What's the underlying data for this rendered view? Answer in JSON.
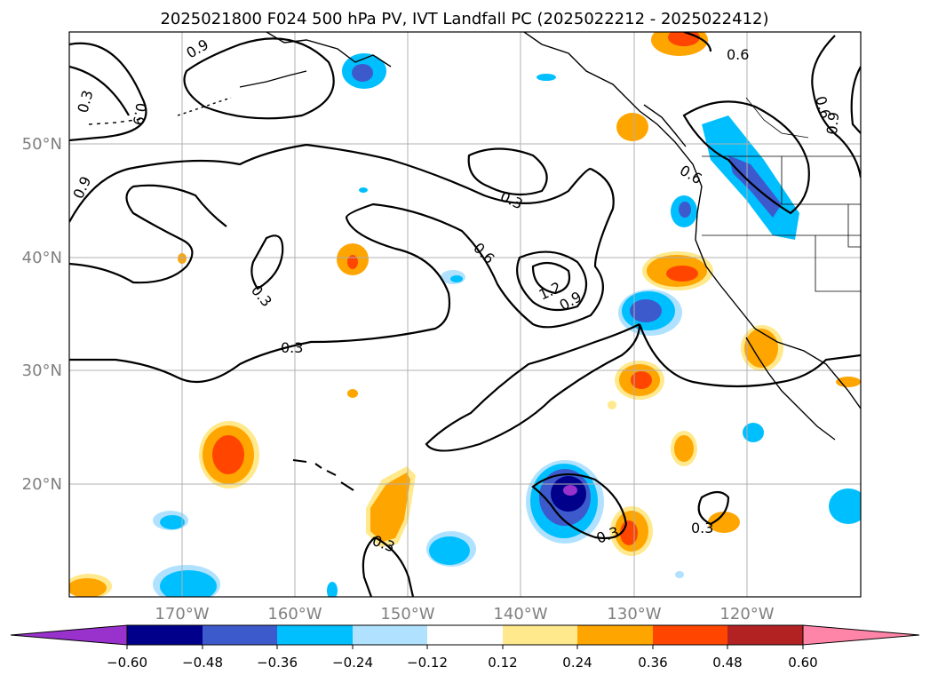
{
  "title": "2025021800 F024 500 hPa PV, IVT Landfall PC (2025022212 - 2025022412)",
  "lat_labels": [
    "50°N",
    "40°N",
    "30°N",
    "20°N"
  ],
  "lon_labels": [
    "170°W",
    "160°W",
    "150°W",
    "140°W",
    "130°W",
    "120°W"
  ],
  "contour_labels": [
    "0.9",
    "0.3",
    "0.9",
    "0.6",
    "0.9",
    "0.6",
    "0.9",
    "0.3",
    "0.6",
    "0.3",
    "1.2",
    "0.9",
    "0.6",
    "0.3",
    "0.3",
    "0.3",
    "0.3"
  ],
  "colorbar": {
    "ticks": [
      "−0.60",
      "−0.48",
      "−0.36",
      "−0.24",
      "−0.12",
      "0.12",
      "0.24",
      "0.36",
      "0.48",
      "0.60"
    ],
    "colors": [
      "#9932cc",
      "#00008b",
      "#3d5acd",
      "#00bfff",
      "#b0e2ff",
      "#ffffff",
      "#ffe98c",
      "#ffa500",
      "#ff4500",
      "#b22222",
      "#ff85a8"
    ]
  },
  "colors": {
    "neg_light": "#b0e2ff",
    "neg_mid": "#00bfff",
    "neg_strong": "#3d5acd",
    "neg_dark": "#00008b",
    "neg_extreme": "#9932cc",
    "pos_light": "#ffe98c",
    "pos_mid": "#ffa500",
    "pos_strong": "#ff4500",
    "grid": "#b0b0b0",
    "axis_label": "#808080"
  }
}
